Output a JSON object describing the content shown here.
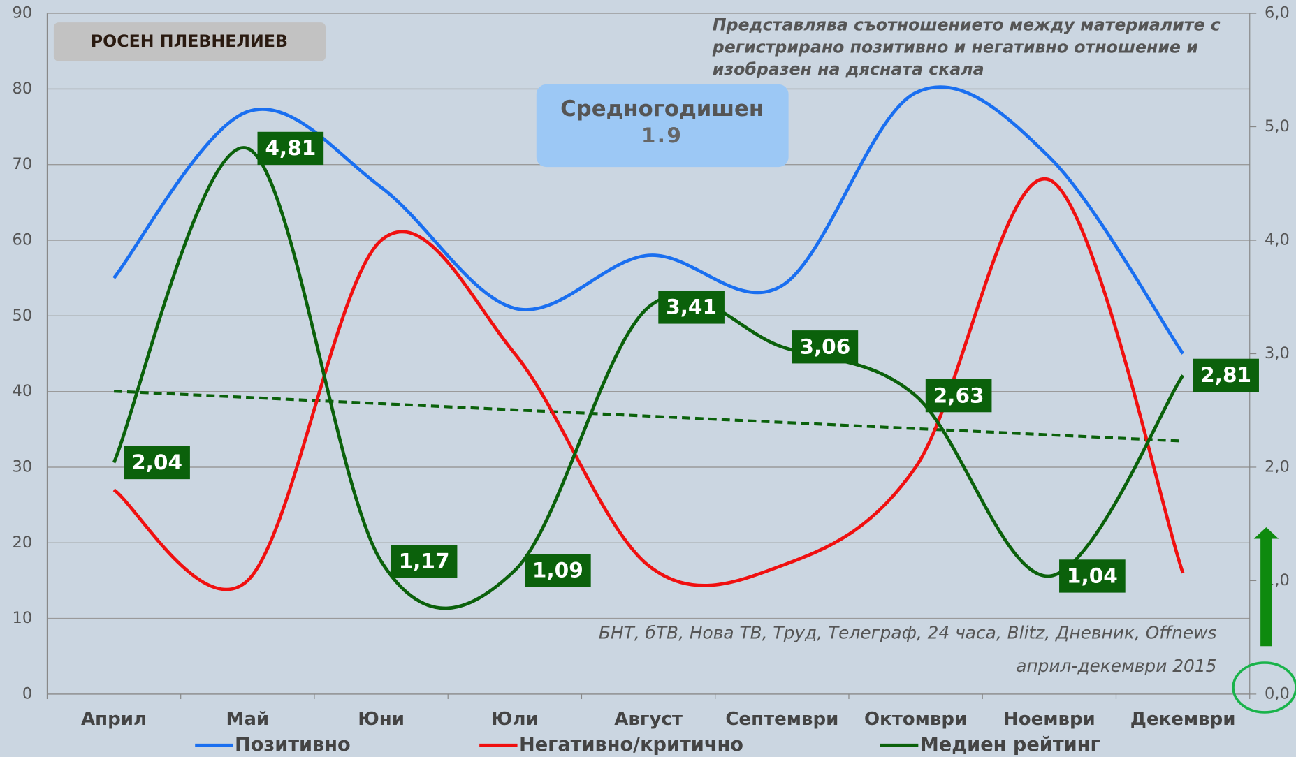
{
  "chart_data": {
    "type": "line",
    "title": "РОСЕН ПЛЕВНЕЛИЕВ",
    "annotations": [
      "Представлява съотношението между материалите с",
      "регистрирано позитивно и негативно отношение и",
      "изобразен на дясната скала"
    ],
    "average_label": "Средногодишен",
    "average_value": "1.9",
    "sources": [
      "БНТ, бТВ, Нова ТВ, Труд, Телеграф, 24 часа, Blitz, Дневник, Offnews",
      "април-декември 2015"
    ],
    "categories": [
      "Април",
      "Май",
      "Юни",
      "Юли",
      "Август",
      "Септември",
      "Октомври",
      "Ноември",
      "Декември"
    ],
    "series": [
      {
        "name": "Позитивно",
        "color": "#1a6ff0",
        "values": [
          55,
          77,
          67,
          51,
          58,
          54,
          79.5,
          71,
          45
        ]
      },
      {
        "name": "Негативно/критично",
        "color": "#f01010",
        "values": [
          27,
          15,
          60,
          45,
          17,
          17,
          30,
          68,
          16
        ]
      },
      {
        "name": "Медиен рейтинг",
        "color": "#0b610b",
        "axis": "y2",
        "values": [
          2.04,
          4.81,
          1.17,
          1.09,
          3.41,
          3.06,
          2.63,
          1.04,
          2.81
        ],
        "value_labels": [
          "2,04",
          "4,81",
          "1,17",
          "1,09",
          "3,41",
          "3,06",
          "2,63",
          "1,04",
          "2,81"
        ]
      }
    ],
    "trendline": {
      "axis": "y2",
      "start": 2.67,
      "end": 2.23,
      "color": "#0b610b"
    },
    "ylim": [
      0,
      90
    ],
    "yticks": [
      0,
      10,
      20,
      30,
      40,
      50,
      60,
      70,
      80,
      90
    ],
    "y2lim": [
      0,
      6
    ],
    "y2ticks": [
      {
        "value": 0,
        "label": "0,0"
      },
      {
        "value": 1,
        "label": "1,0"
      },
      {
        "value": 2,
        "label": "2,0"
      },
      {
        "value": 3,
        "label": "3,0"
      },
      {
        "value": 4,
        "label": "4,0"
      },
      {
        "value": 5,
        "label": "5,0"
      },
      {
        "value": 6,
        "label": "6,0"
      }
    ],
    "grid": true
  }
}
